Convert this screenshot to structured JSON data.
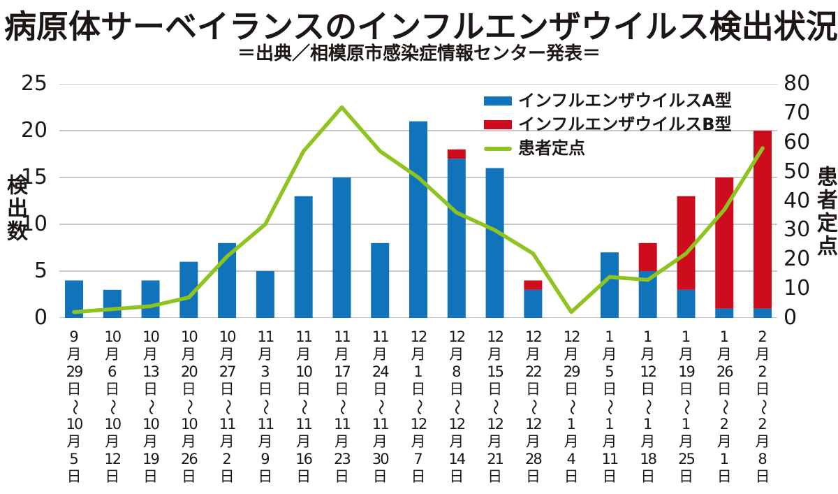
{
  "title": "病原体サーベイランスのインフルエンザウイルス検出状況",
  "subtitle": "＝出典／相模原市感染症情報センター発表＝",
  "colors": {
    "influenza_a": "#1173b9",
    "influenza_b": "#cd0d1e",
    "patient_line": "#8fc31f",
    "gridline": "#c8c8c8",
    "text": "#1c1714"
  },
  "chart_data": {
    "type": "bar",
    "subtype": "stacked-bar-with-line",
    "title": "病原体サーベイランスのインフルエンザウイルス検出状況",
    "subtitle": "＝出典／相模原市感染症情報センター発表＝",
    "grid": "horizontal",
    "legend_position": "top-right",
    "categories": [
      "9月29日～10月5日",
      "10月6日～10月12日",
      "10月13日～10月19日",
      "10月20日～10月26日",
      "10月27日～11月2日",
      "11月3日～11月9日",
      "11月10日～11月16日",
      "11月17日～11月23日",
      "11月24日～11月30日",
      "12月1日～12月7日",
      "12月8日～12月14日",
      "12月15日～12月21日",
      "12月22日～12月28日",
      "12月29日～1月4日",
      "1月5日～1月11日",
      "1月12日～1月18日",
      "1月19日～1月25日",
      "1月26日～2月1日",
      "2月2日～2月8日"
    ],
    "series": [
      {
        "name": "インフルエンザウイルスA型",
        "type": "bar",
        "stack": "viruses",
        "axis": "left",
        "color": "#1173b9",
        "values": [
          4,
          3,
          4,
          6,
          8,
          5,
          13,
          15,
          8,
          21,
          17,
          16,
          3,
          0,
          7,
          5,
          3,
          1,
          1
        ]
      },
      {
        "name": "インフルエンザウイルスB型",
        "type": "bar",
        "stack": "viruses",
        "axis": "left",
        "color": "#cd0d1e",
        "values": [
          0,
          0,
          0,
          0,
          0,
          0,
          0,
          0,
          0,
          0,
          1,
          0,
          1,
          0,
          0,
          3,
          10,
          14,
          19
        ]
      },
      {
        "name": "患者定点",
        "type": "line",
        "axis": "right",
        "color": "#8fc31f",
        "values": [
          2,
          3,
          4,
          7,
          21,
          32,
          57,
          72,
          57,
          48,
          36,
          30,
          22,
          2,
          14,
          13,
          22,
          37,
          58
        ]
      }
    ],
    "left_axis": {
      "label": "検出数",
      "min": 0,
      "max": 25,
      "ticks": [
        0,
        5,
        10,
        15,
        20,
        25
      ]
    },
    "right_axis": {
      "label": "患者定点",
      "min": 0,
      "max": 80,
      "ticks": [
        0,
        10,
        20,
        30,
        40,
        50,
        60,
        70,
        80
      ]
    }
  }
}
